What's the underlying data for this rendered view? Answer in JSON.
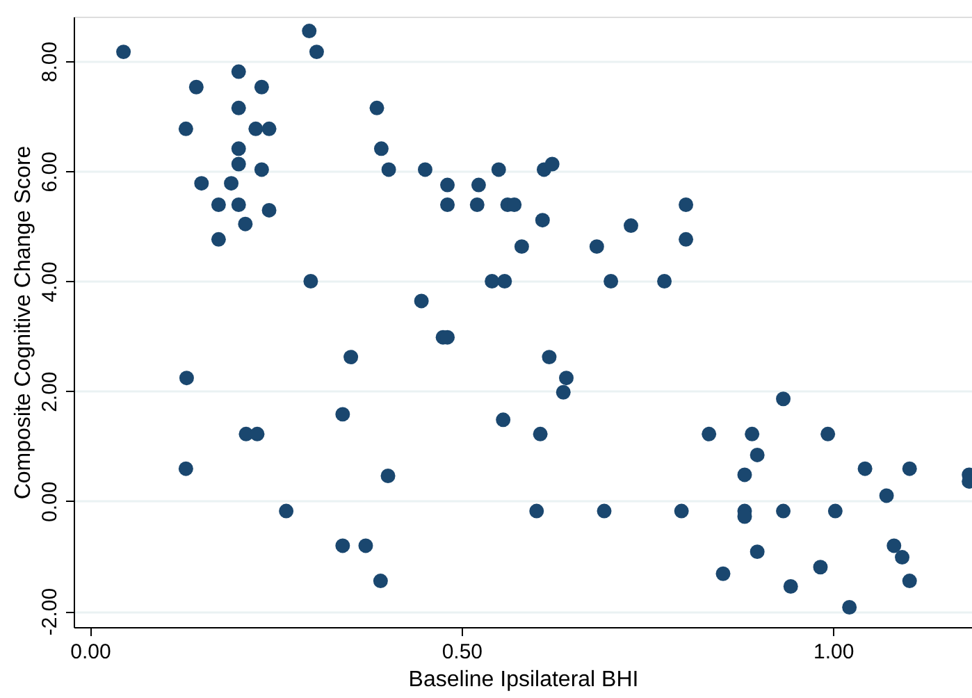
{
  "chart_data": {
    "type": "scatter",
    "xlabel": "Baseline Ipsilateral BHI",
    "ylabel": "Composite Cognitive Change Score",
    "xlim": [
      -0.022,
      1.187
    ],
    "ylim": [
      -2.29,
      8.81
    ],
    "xticks": [
      {
        "value": 0,
        "label": "0.00"
      },
      {
        "value": 0.5,
        "label": "0.50"
      },
      {
        "value": 1,
        "label": "1.00"
      }
    ],
    "yticks": [
      {
        "value": -2,
        "label": "-2.00"
      },
      {
        "value": 0,
        "label": "0.00"
      },
      {
        "value": 2,
        "label": "2.00"
      },
      {
        "value": 4,
        "label": "4.00"
      },
      {
        "value": 6,
        "label": "6.00"
      },
      {
        "value": 8,
        "label": "8.00"
      }
    ],
    "grid": "y",
    "series": [
      {
        "color": "#1a476f",
        "x": [
          0.045,
          0.295,
          0.305,
          0.143,
          0.2,
          0.231,
          0.2,
          0.129,
          0.223,
          0.241,
          0.2,
          0.2,
          0.231,
          0.15,
          0.19,
          0.173,
          0.2,
          0.241,
          0.209,
          0.173,
          0.297,
          0.386,
          0.392,
          0.402,
          0.351,
          0.451,
          0.481,
          0.523,
          0.55,
          0.481,
          0.521,
          0.562,
          0.571,
          0.611,
          0.622,
          0.609,
          0.581,
          0.682,
          0.728,
          0.802,
          0.802,
          0.541,
          0.558,
          0.701,
          0.773,
          0.446,
          0.475,
          0.481,
          0.13,
          0.34,
          0.21,
          0.225,
          0.129,
          0.401,
          0.264,
          0.34,
          0.371,
          0.391,
          0.618,
          0.641,
          0.637,
          0.556,
          0.606,
          0.833,
          0.891,
          0.881,
          0.601,
          0.692,
          0.796,
          0.881,
          0.881,
          0.852,
          0.898,
          0.898,
          0.933,
          0.993,
          1.043,
          1.103,
          1.183,
          1.183,
          1.072,
          0.933,
          1.003,
          1.082,
          1.093,
          0.983,
          1.103,
          0.943,
          1.022
        ],
        "values": [
          8.17,
          8.55,
          8.17,
          7.53,
          7.81,
          7.53,
          7.15,
          6.77,
          6.77,
          6.77,
          6.41,
          6.13,
          6.03,
          5.78,
          5.78,
          5.39,
          5.39,
          5.29,
          5.04,
          4.76,
          4.0,
          7.15,
          6.41,
          6.03,
          2.62,
          6.03,
          5.75,
          5.75,
          6.03,
          5.39,
          5.39,
          5.39,
          5.39,
          6.03,
          6.13,
          5.11,
          4.63,
          4.63,
          5.01,
          5.39,
          4.76,
          4.0,
          4.0,
          4.0,
          4.0,
          3.64,
          2.98,
          2.98,
          2.24,
          1.58,
          1.22,
          1.22,
          0.59,
          0.46,
          -0.18,
          -0.81,
          -0.81,
          -1.45,
          2.62,
          2.24,
          1.98,
          1.48,
          1.22,
          1.22,
          1.22,
          0.48,
          -0.18,
          -0.18,
          -0.18,
          -0.18,
          -0.28,
          -1.32,
          0.84,
          -0.92,
          1.86,
          1.22,
          0.59,
          0.59,
          0.48,
          0.36,
          0.1,
          -0.18,
          -0.18,
          -0.81,
          -1.02,
          -1.2,
          -1.45,
          -1.55,
          -1.93
        ]
      }
    ]
  }
}
